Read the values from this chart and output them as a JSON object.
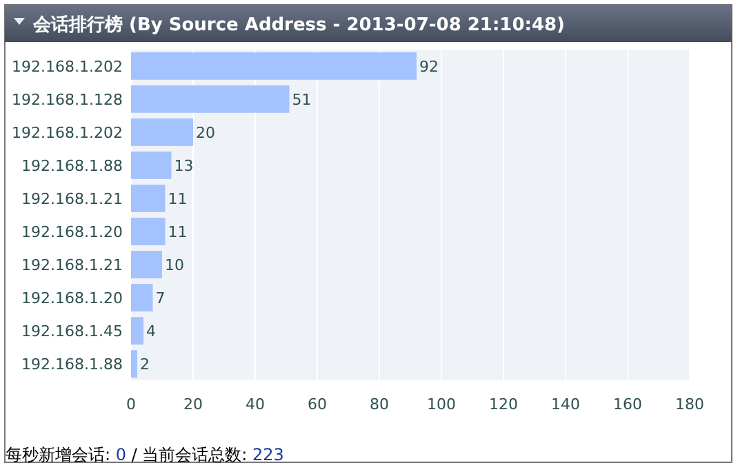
{
  "chart_data": {
    "type": "bar",
    "orientation": "horizontal",
    "title": "会话排行榜 (By Source Address - 2013-07-08 21:10:48)",
    "categories": [
      "192.168.1.202",
      "192.168.1.128",
      "192.168.1.202",
      "192.168.1.88",
      "192.168.1.21",
      "192.168.1.20",
      "192.168.1.21",
      "192.168.1.20",
      "192.168.1.45",
      "192.168.1.88"
    ],
    "values": [
      92,
      51,
      20,
      13,
      11,
      11,
      10,
      7,
      4,
      2
    ],
    "color": "#a4c2fd",
    "xlim": [
      0,
      180
    ],
    "xticks": [
      0,
      20,
      40,
      60,
      80,
      100,
      120,
      140,
      160,
      180
    ],
    "grid": "x",
    "data_labels": true,
    "annotations": [
      "每秒新增会话: 0 / 当前会话总数: 223"
    ]
  }
}
